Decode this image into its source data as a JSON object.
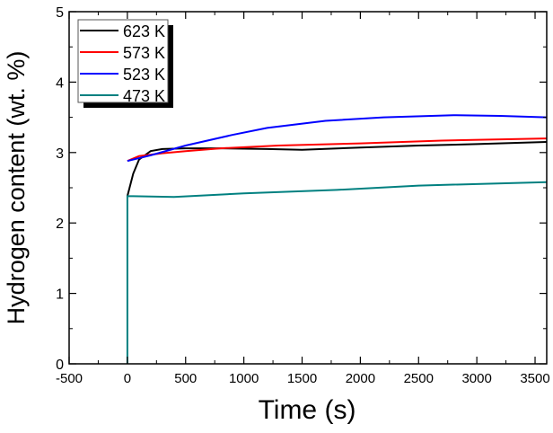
{
  "chart_data": {
    "type": "line",
    "title": "",
    "xlabel": "Time (s)",
    "ylabel": "Hydrogen content (wt. %)",
    "xlim": [
      -500,
      3600
    ],
    "ylim": [
      0,
      5
    ],
    "xticks": [
      -500,
      0,
      500,
      1000,
      1500,
      2000,
      2500,
      3000,
      3500
    ],
    "yticks": [
      0,
      1,
      2,
      3,
      4,
      5
    ],
    "grid": false,
    "legend_position": "top-left",
    "series": [
      {
        "name": "623 K",
        "color": "#000000",
        "x": [
          0,
          50,
          100,
          200,
          300,
          500,
          800,
          1200,
          1500,
          2000,
          2500,
          3000,
          3600
        ],
        "y": [
          2.38,
          2.7,
          2.9,
          3.02,
          3.05,
          3.06,
          3.06,
          3.05,
          3.04,
          3.07,
          3.1,
          3.12,
          3.15
        ]
      },
      {
        "name": "573 K",
        "color": "#ff0000",
        "x": [
          0,
          100,
          300,
          500,
          800,
          1300,
          2000,
          2700,
          3600
        ],
        "y": [
          2.88,
          2.95,
          2.99,
          3.02,
          3.06,
          3.1,
          3.13,
          3.17,
          3.2
        ]
      },
      {
        "name": "523 K",
        "color": "#0000ff",
        "x": [
          0,
          200,
          500,
          900,
          1200,
          1700,
          2200,
          2800,
          3200,
          3600
        ],
        "y": [
          2.88,
          2.96,
          3.1,
          3.25,
          3.35,
          3.45,
          3.5,
          3.53,
          3.52,
          3.5
        ]
      },
      {
        "name": "473 K",
        "color": "#008080",
        "x": [
          0,
          0,
          50,
          400,
          1000,
          1800,
          2500,
          3600
        ],
        "y": [
          0,
          2.38,
          2.38,
          2.37,
          2.42,
          2.47,
          2.53,
          2.58
        ]
      }
    ]
  }
}
